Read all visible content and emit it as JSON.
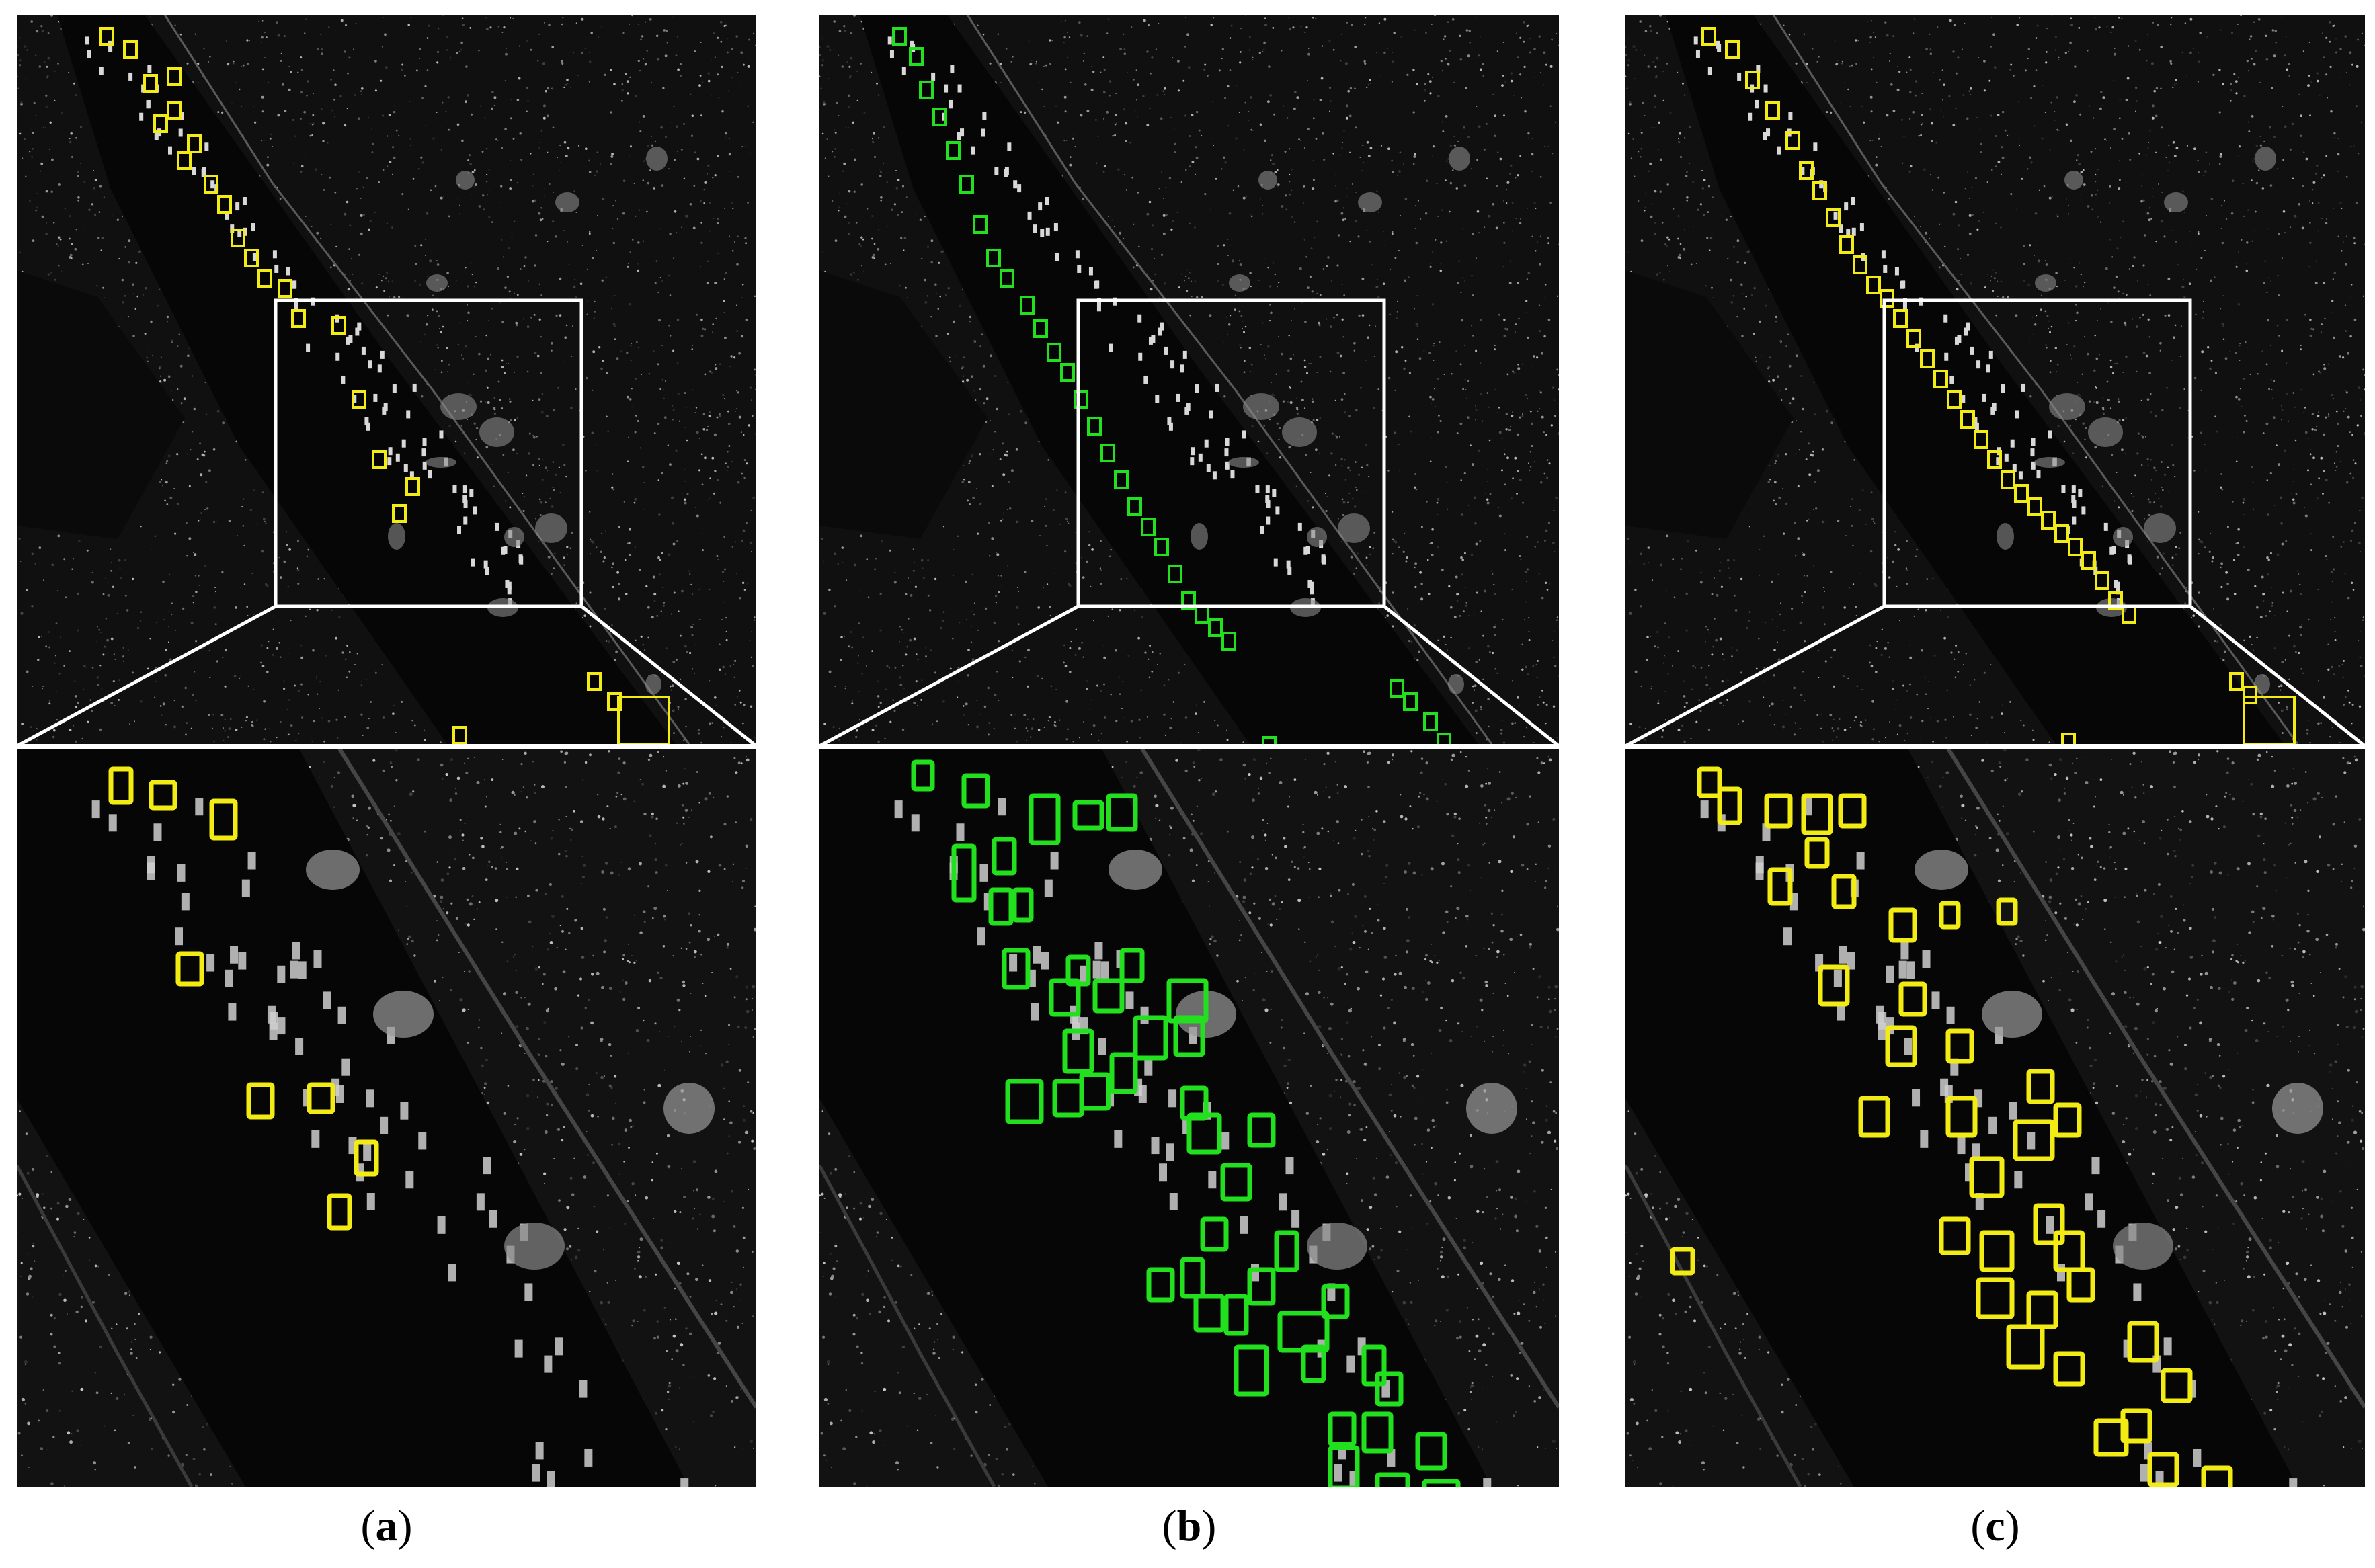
{
  "figure": {
    "panels": [
      {
        "id": "a",
        "caption": "a",
        "detections": "yellow"
      },
      {
        "id": "b",
        "caption": "b",
        "detections": "green"
      },
      {
        "id": "c",
        "caption": "c",
        "detections": "yellow"
      }
    ],
    "colors": {
      "yellow_boxes": "#f2ec14",
      "green_boxes": "#22e01e",
      "zoom_frame": "#ffffff",
      "background": "#050505"
    }
  }
}
